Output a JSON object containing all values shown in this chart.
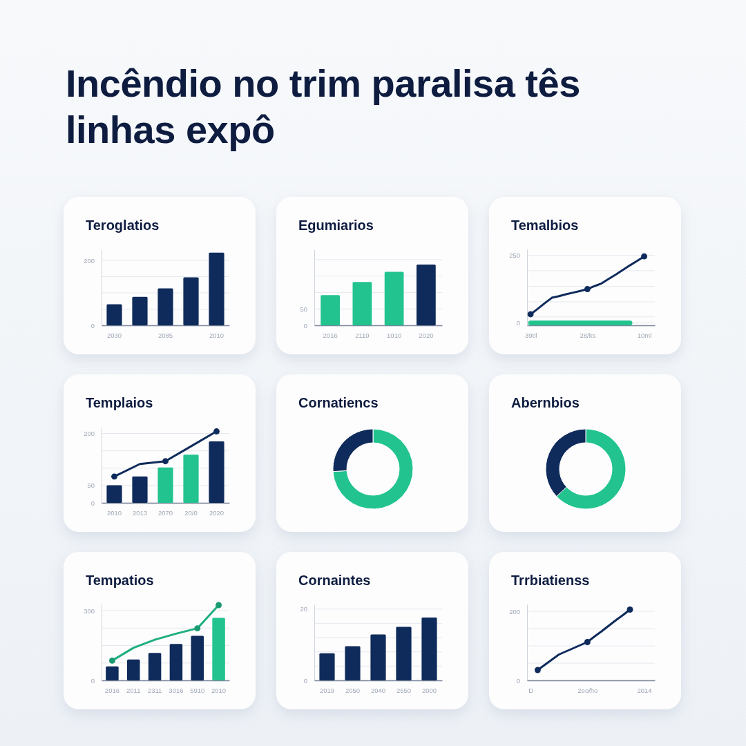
{
  "chart_data": [
    {
      "type": "other",
      "title": "Incêndio no trim paralisa tês linhas expô"
    },
    {
      "type": "bar",
      "title": "Teroglatios",
      "categories": [
        "2030",
        null,
        "2085",
        null,
        "2010"
      ],
      "values": [
        65,
        88,
        114,
        148,
        224
      ],
      "color": "#0f2b5b",
      "ylim": [
        0,
        234
      ],
      "yticks": [
        0,
        {
          "value": 50,
          "label": null
        },
        {
          "value": 100,
          "label": null
        },
        {
          "value": 150,
          "label": null
        },
        200
      ],
      "grid": "y"
    },
    {
      "type": "bar",
      "title": "Egumiarios",
      "categories": [
        "2016",
        "2110",
        "1010",
        "2020"
      ],
      "values": [
        92,
        132,
        163,
        185
      ],
      "colors": [
        "#22c38f",
        "#22c38f",
        "#22c38f",
        "#0f2b5b"
      ],
      "ylim": [
        0,
        231
      ],
      "yticks": [
        0,
        50,
        {
          "value": 100,
          "label": null
        },
        {
          "value": 150,
          "label": null
        },
        {
          "value": 200,
          "label": null
        }
      ],
      "grid": "y"
    },
    {
      "type": "line",
      "title": "Temalbios",
      "categories": [
        "39til",
        null,
        null,
        null,
        null,
        null,
        null,
        null,
        "28/ks",
        null,
        null,
        null,
        null,
        null,
        null,
        null,
        "10ml",
        null
      ],
      "ylim": [
        -9,
        272
      ],
      "yticks": [
        0,
        {
          "value": 22,
          "label": null
        },
        {
          "value": 78,
          "label": null
        },
        {
          "value": 135,
          "label": null
        },
        {
          "value": 193,
          "label": null
        },
        250
      ],
      "grid": "y",
      "series": [
        {
          "color": "#22c38f",
          "values": [
            0,
            0,
            0,
            0,
            0,
            0,
            0,
            0,
            0,
            0,
            0,
            0,
            0,
            0,
            0,
            null,
            null,
            null
          ]
        },
        {
          "color": "#0f2b5b",
          "values": [
            32,
            52,
            73,
            93,
            99,
            106,
            112,
            118,
            125,
            136,
            146,
            163,
            179,
            196,
            213,
            229,
            246,
            null
          ]
        },
        {
          "type": "scatter",
          "marker": "circle",
          "color": "#0f2b5b",
          "values": [
            32,
            null,
            null,
            null,
            null,
            null,
            null,
            null,
            125,
            null,
            null,
            null,
            null,
            null,
            null,
            null,
            246,
            null
          ]
        }
      ]
    },
    {
      "type": "bar",
      "title": "Templaios",
      "categories": [
        "2010",
        "2013",
        "2070",
        "20/0",
        "2020"
      ],
      "ylim": [
        0,
        219
      ],
      "yticks": [
        0,
        50,
        {
          "value": 100,
          "label": null
        },
        {
          "value": 150,
          "label": null
        },
        200
      ],
      "grid": "y",
      "series": [
        {
          "type": "bar",
          "colors": [
            "#0f2b5b",
            "#0f2b5b",
            "#22c38f",
            "#22c38f",
            "#0f2b5b"
          ],
          "values": [
            51,
            76,
            102,
            139,
            177
          ]
        },
        {
          "type": "line",
          "color": "#0f2b5b",
          "values": [
            76,
            112,
            120,
            163,
            206
          ]
        },
        {
          "type": "scatter",
          "marker": "circle",
          "color": "#0f2b5b",
          "values": [
            76,
            null,
            120,
            null,
            206
          ]
        }
      ]
    },
    {
      "type": "donut",
      "title": "Cornatiencs",
      "categories": [
        null,
        null
      ],
      "values": [
        74,
        26
      ],
      "colors": [
        "#22c38f",
        "#0f2b5b"
      ]
    },
    {
      "type": "donut",
      "title": "Abernbios",
      "categories": [
        null,
        null
      ],
      "values": [
        63,
        37
      ],
      "colors": [
        "#22c38f",
        "#0f2b5b"
      ]
    },
    {
      "type": "bar",
      "title": "Tempatios",
      "categories": [
        "2016",
        "2011",
        "2311",
        "3016",
        "5910",
        "2010"
      ],
      "ylim": [
        0,
        327
      ],
      "yticks": [
        0,
        {
          "value": 75,
          "label": null
        },
        {
          "value": 150,
          "label": null
        },
        {
          "value": 225,
          "label": null
        },
        300
      ],
      "grid": "y",
      "series": [
        {
          "type": "bar",
          "colors": [
            "#0f2b5b",
            "#0f2b5b",
            "#0f2b5b",
            "#0f2b5b",
            "#0f2b5b",
            "#22c38f"
          ],
          "values": [
            60,
            90,
            118,
            157,
            192,
            269
          ]
        },
        {
          "type": "line",
          "color": "#1fae80",
          "values": [
            85,
            140,
            175,
            201,
            224,
            324
          ]
        },
        {
          "type": "scatter",
          "marker": "circle",
          "color": "#1a9a71",
          "values": [
            85,
            null,
            null,
            null,
            224,
            324
          ]
        }
      ]
    },
    {
      "type": "bar",
      "title": "Cornaintes",
      "categories": [
        "2019",
        "2050",
        "2040",
        "2550",
        "2000"
      ],
      "values": [
        7.6,
        9.6,
        12.9,
        15.0,
        17.6
      ],
      "color": "#0f2b5b",
      "ylim": [
        0,
        21.3
      ],
      "yticks": [
        0,
        {
          "value": 4,
          "label": null
        },
        {
          "value": 8,
          "label": null
        },
        {
          "value": 12,
          "label": null
        },
        {
          "value": 16,
          "label": null
        },
        20
      ],
      "grid": "y"
    },
    {
      "type": "line",
      "title": "Trrbiatienss",
      "categories": [
        "D",
        null,
        null,
        null,
        null,
        null,
        null,
        null,
        "2eo/ho",
        null,
        null,
        null,
        null,
        null,
        null,
        null,
        "2014",
        null
      ],
      "ylim": [
        0,
        220
      ],
      "yticks": [
        0,
        {
          "value": 50,
          "label": null
        },
        {
          "value": 100,
          "label": null
        },
        {
          "value": 150,
          "label": null
        },
        200
      ],
      "grid": "y",
      "series": [
        {
          "color": "#0f2b5b",
          "values": [
            null,
            30,
            45,
            60,
            75,
            84,
            93,
            102,
            111,
            127,
            142,
            158,
            174,
            189,
            205,
            null,
            null,
            null
          ]
        },
        {
          "type": "scatter",
          "marker": "circle",
          "color": "#0f2b5b",
          "values": [
            null,
            30,
            null,
            null,
            null,
            null,
            null,
            null,
            111,
            null,
            null,
            null,
            null,
            null,
            205,
            null,
            null,
            null
          ]
        }
      ]
    }
  ]
}
